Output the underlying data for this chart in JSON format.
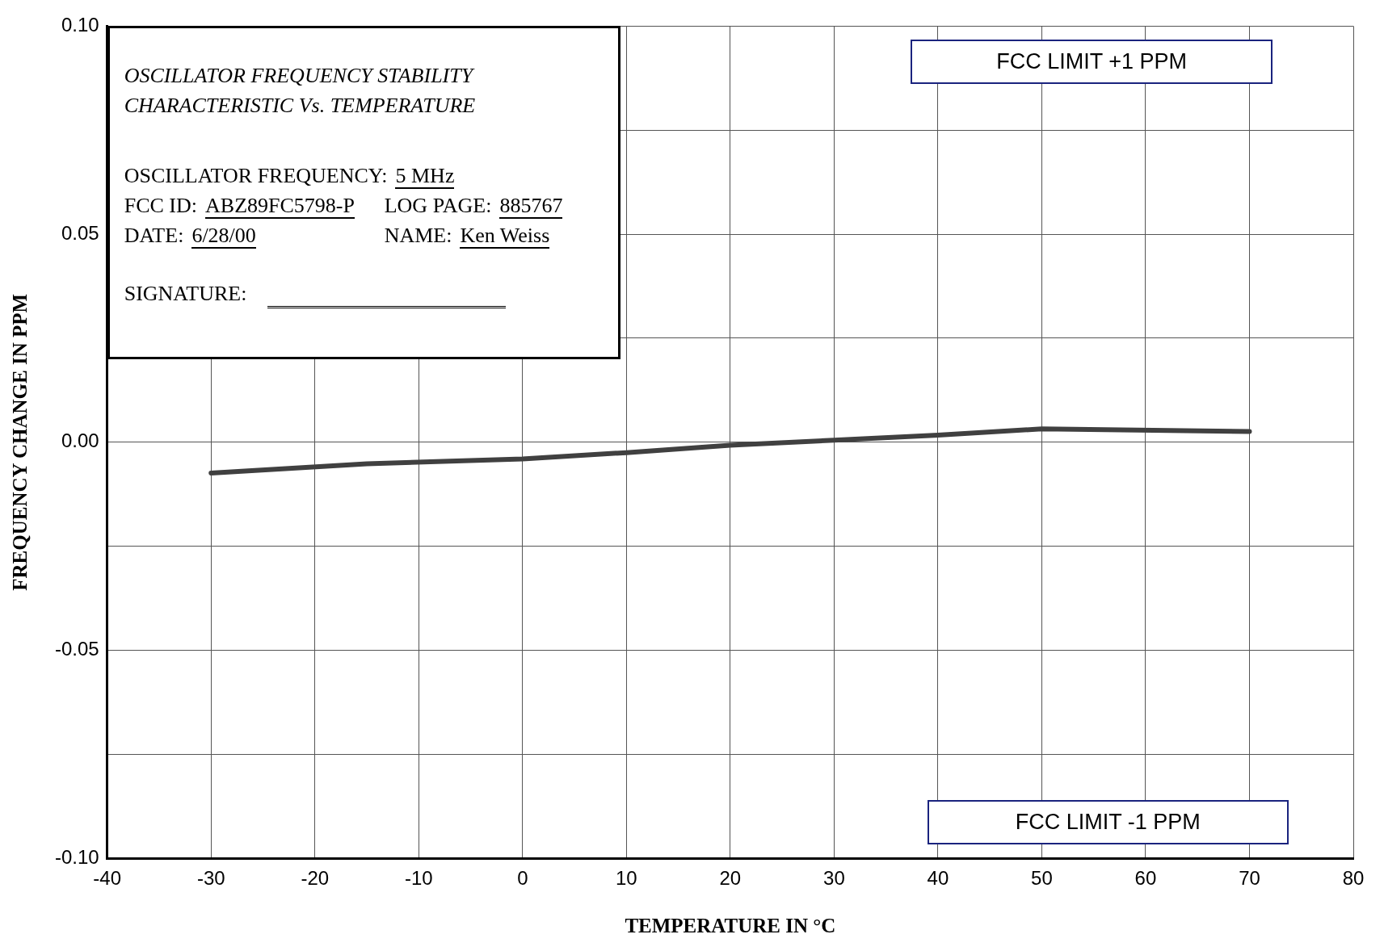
{
  "chart_data": {
    "type": "line",
    "title": "OSCILLATOR FREQUENCY STABILITY CHARACTERISTIC Vs. TEMPERATURE",
    "xlabel": "TEMPERATURE IN °C",
    "ylabel": "FREQUENCY CHANGE IN PPM",
    "x": [
      -30,
      -15,
      0,
      10,
      20,
      30,
      40,
      50,
      70
    ],
    "series": [
      {
        "color": "#404040",
        "values": [
          -0.0074,
          -0.0052,
          -0.004,
          -0.0025,
          -0.0007,
          0.0005,
          0.0017,
          0.0032,
          0.0026
        ]
      }
    ],
    "xlim": [
      -40,
      80
    ],
    "xticks": [
      -40,
      -30,
      -20,
      -10,
      0,
      10,
      20,
      30,
      40,
      50,
      60,
      70,
      80
    ],
    "ylim": [
      -0.1,
      0.1
    ],
    "yticks": [
      {
        "value": -0.1,
        "label": "-0.10"
      },
      {
        "value": -0.075,
        "label": null
      },
      {
        "value": -0.05,
        "label": "-0.05"
      },
      {
        "value": -0.025,
        "label": null
      },
      {
        "value": 0,
        "label": "0.00"
      },
      {
        "value": 0.025,
        "label": null
      },
      {
        "value": 0.05,
        "label": "0.05"
      },
      {
        "value": 0.075,
        "label": null
      },
      {
        "value": 0.1,
        "label": "0.10"
      }
    ],
    "grid": true,
    "marker": "none",
    "line_style": "solid",
    "legend": false,
    "annotations": [
      "OSCILLATOR FREQUENCY: 5 MHz",
      "FCC ID: ABZ89FC5798-P",
      "LOG PAGE: 885767",
      "DATE: 6/28/00",
      "NAME: Ken Weiss",
      "SIGNATURE:",
      "FCC LIMIT +1 PPM",
      "FCC LIMIT -1 PPM"
    ]
  }
}
